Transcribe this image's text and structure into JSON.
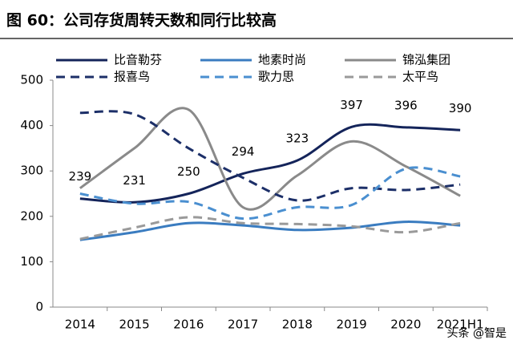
{
  "chart_data": {
    "type": "line",
    "title": "图 60：公司存货周转天数和同行比较高",
    "categories": [
      "2014",
      "2015",
      "2016",
      "2017",
      "2018",
      "2019",
      "2020",
      "2021H1"
    ],
    "series": [
      {
        "name": "比音勒芬",
        "color": "#14245a",
        "dash": false,
        "values": [
          239,
          231,
          250,
          294,
          323,
          397,
          396,
          390
        ],
        "labels": true
      },
      {
        "name": "地素时尚",
        "color": "#3a7cc0",
        "dash": false,
        "values": [
          148,
          165,
          185,
          180,
          170,
          175,
          188,
          180
        ]
      },
      {
        "name": "锦泓集团",
        "color": "#8a8a8a",
        "dash": false,
        "values": [
          262,
          350,
          435,
          220,
          290,
          365,
          310,
          245
        ]
      },
      {
        "name": "报喜鸟",
        "color": "#1c2f68",
        "dash": true,
        "values": [
          428,
          425,
          350,
          285,
          235,
          262,
          258,
          270
        ]
      },
      {
        "name": "歌力思",
        "color": "#4a8fd0",
        "dash": true,
        "values": [
          250,
          228,
          232,
          195,
          220,
          225,
          305,
          288
        ]
      },
      {
        "name": "太平鸟",
        "color": "#9a9a9a",
        "dash": true,
        "values": [
          150,
          175,
          198,
          185,
          183,
          178,
          165,
          185
        ]
      }
    ],
    "ylim": [
      0,
      500
    ],
    "yticks": [
      0,
      100,
      200,
      300,
      400,
      500
    ],
    "grid": false,
    "watermark": "头条 @智是"
  }
}
